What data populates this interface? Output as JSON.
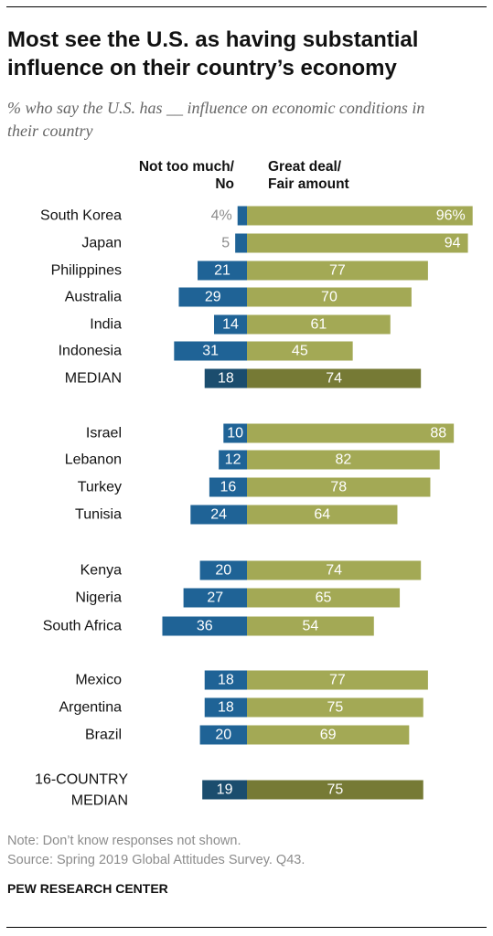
{
  "title": "Most see the U.S. as having substantial influence on their country’s economy",
  "subtitle": "% who say the U.S. has __ influence on economic conditions in their country",
  "notes": [
    "Note: Don’t know responses not shown.",
    "Source: Spring 2019 Global Attitudes Survey. Q43."
  ],
  "brand": "PEW RESEARCH CENTER",
  "colors": {
    "negative": "#1f6396",
    "positive": "#a3a955",
    "median_negative": "#1b4d6e",
    "median_positive": "#767a35",
    "small_label": "#8c8c8c"
  },
  "chart_data": {
    "type": "bar",
    "orientation": "horizontal-diverging",
    "series": [
      {
        "name": "Not too much/ No",
        "side": "left"
      },
      {
        "name": "Great deal/ Fair amount",
        "side": "right"
      }
    ],
    "rows": [
      {
        "label": "South Korea",
        "neg": 4,
        "pos": 96,
        "neg_text": "4%",
        "pos_text": "96%"
      },
      {
        "label": "Japan",
        "neg": 5,
        "pos": 94,
        "neg_text": "5",
        "pos_text": "94"
      },
      {
        "label": "Philippines",
        "neg": 21,
        "pos": 77,
        "neg_text": "21",
        "pos_text": "77"
      },
      {
        "label": "Australia",
        "neg": 29,
        "pos": 70,
        "neg_text": "29",
        "pos_text": "70"
      },
      {
        "label": "India",
        "neg": 14,
        "pos": 61,
        "neg_text": "14",
        "pos_text": "61"
      },
      {
        "label": "Indonesia",
        "neg": 31,
        "pos": 45,
        "neg_text": "31",
        "pos_text": "45"
      },
      {
        "label": "MEDIAN",
        "neg": 18,
        "pos": 74,
        "neg_text": "18",
        "pos_text": "74",
        "median": true
      },
      {
        "label": "Israel",
        "neg": 10,
        "pos": 88,
        "neg_text": "10",
        "pos_text": "88"
      },
      {
        "label": "Lebanon",
        "neg": 12,
        "pos": 82,
        "neg_text": "12",
        "pos_text": "82"
      },
      {
        "label": "Turkey",
        "neg": 16,
        "pos": 78,
        "neg_text": "16",
        "pos_text": "78"
      },
      {
        "label": "Tunisia",
        "neg": 24,
        "pos": 64,
        "neg_text": "24",
        "pos_text": "64"
      },
      {
        "label": "Kenya",
        "neg": 20,
        "pos": 74,
        "neg_text": "20",
        "pos_text": "74"
      },
      {
        "label": "Nigeria",
        "neg": 27,
        "pos": 65,
        "neg_text": "27",
        "pos_text": "65"
      },
      {
        "label": "South Africa",
        "neg": 36,
        "pos": 54,
        "neg_text": "36",
        "pos_text": "54"
      },
      {
        "label": "Mexico",
        "neg": 18,
        "pos": 77,
        "neg_text": "18",
        "pos_text": "77"
      },
      {
        "label": "Argentina",
        "neg": 18,
        "pos": 75,
        "neg_text": "18",
        "pos_text": "75"
      },
      {
        "label": "Brazil",
        "neg": 20,
        "pos": 69,
        "neg_text": "20",
        "pos_text": "69"
      },
      {
        "label": "16-COUNTRY MEDIAN",
        "neg": 19,
        "pos": 75,
        "neg_text": "19",
        "pos_text": "75",
        "median": true
      }
    ]
  }
}
